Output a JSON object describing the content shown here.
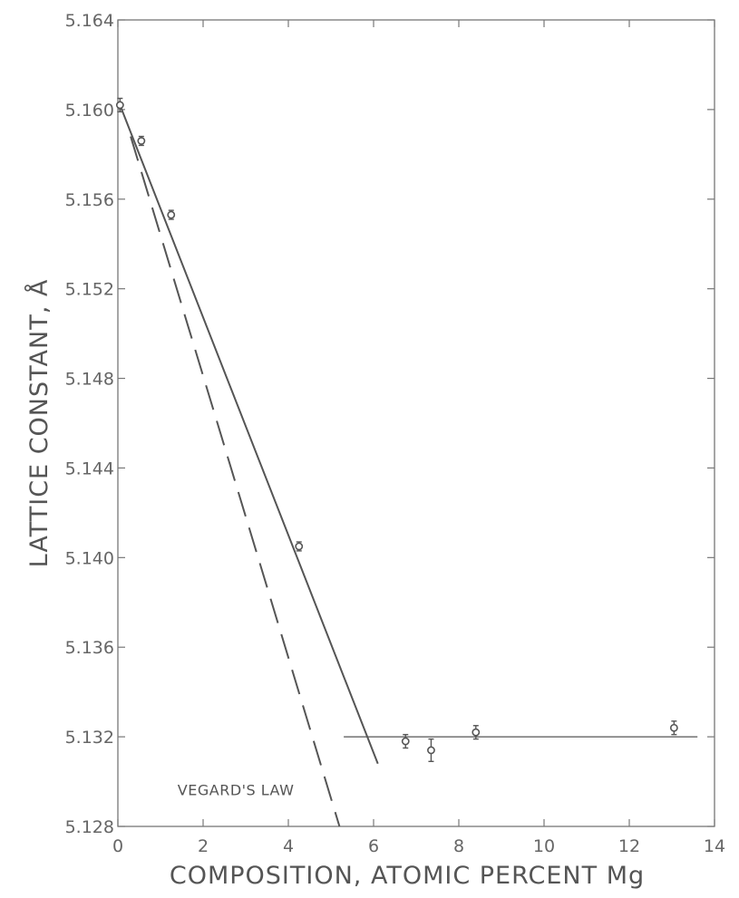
{
  "chart_data": {
    "type": "scatter",
    "title": "",
    "xlabel": "COMPOSITION, ATOMIC PERCENT Mg",
    "ylabel": "LATTICE CONSTANT, Å",
    "xlim": [
      0,
      14
    ],
    "ylim": [
      5.128,
      5.164
    ],
    "x_ticks": [
      0,
      2,
      4,
      6,
      8,
      10,
      12,
      14
    ],
    "x_tick_labels": [
      "0",
      "2",
      "4",
      "6",
      "8",
      "10",
      "12",
      "14"
    ],
    "y_ticks": [
      5.128,
      5.132,
      5.136,
      5.14,
      5.144,
      5.148,
      5.152,
      5.156,
      5.16,
      5.164
    ],
    "y_tick_labels": [
      "5.128",
      "5.132",
      "5.136",
      "5.140",
      "5.144",
      "5.148",
      "5.152",
      "5.156",
      "5.160",
      "5.164"
    ],
    "grid": false,
    "legend": "none",
    "series": [
      {
        "points": [
          {
            "x": 0.05,
            "y": 5.1602,
            "err": 0.0003
          },
          {
            "x": 0.55,
            "y": 5.1586,
            "err": 0.0002
          },
          {
            "x": 1.25,
            "y": 5.1553,
            "err": 0.0002
          },
          {
            "x": 4.25,
            "y": 5.1405,
            "err": 0.0002
          },
          {
            "x": 6.75,
            "y": 5.1318,
            "err": 0.0003
          },
          {
            "x": 7.35,
            "y": 5.1314,
            "err": 0.0005
          },
          {
            "x": 8.4,
            "y": 5.1322,
            "err": 0.0003
          },
          {
            "x": 13.05,
            "y": 5.1324,
            "err": 0.0003
          }
        ]
      }
    ],
    "lines": [
      {
        "style": "solid",
        "points": [
          [
            0.05,
            5.1602
          ],
          [
            6.1,
            5.1308
          ]
        ]
      },
      {
        "style": "solid-thin",
        "points": [
          [
            5.3,
            5.132
          ],
          [
            13.6,
            5.132
          ]
        ]
      },
      {
        "style": "dashed",
        "points": [
          [
            0.3,
            5.1588
          ],
          [
            5.2,
            5.128
          ]
        ]
      }
    ],
    "annotations": [
      {
        "text": "VEGARD'S LAW",
        "x": 1.4,
        "y": 5.1294
      }
    ]
  },
  "colors": {
    "ink": "#555555",
    "frame": "#777777",
    "marker": "#555555"
  }
}
